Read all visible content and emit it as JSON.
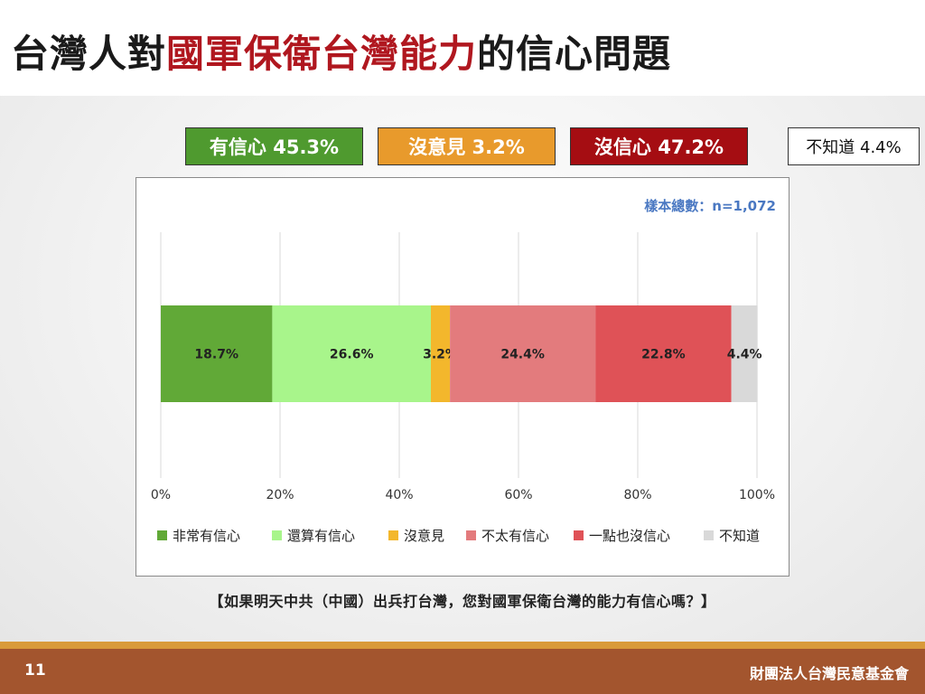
{
  "title": {
    "prefix": "台灣人對",
    "highlight": "國軍保衛台灣能力",
    "suffix": "的信心問題"
  },
  "summary": {
    "confident": "有信心 45.3%",
    "no_opinion": "沒意見 3.2%",
    "not_confident": "沒信心 47.2%",
    "unknown": "不知道 4.4%"
  },
  "question": "【如果明天中共（中國）出兵打台灣，您對國軍保衛台灣的能力有信心嗎？】",
  "footer": {
    "page_number": "11",
    "organization": "財團法人台灣民意基金會"
  },
  "chart_data": {
    "type": "bar",
    "orientation": "horizontal-stacked",
    "sample_note": "樣本總數：n=1,072",
    "xlim": [
      0,
      100
    ],
    "x_ticks": [
      "0%",
      "20%",
      "40%",
      "60%",
      "80%",
      "100%"
    ],
    "grid": true,
    "legend_position": "bottom",
    "series": [
      {
        "name": "非常有信心",
        "value": 18.7,
        "label": "18.7%",
        "color": "#61a937"
      },
      {
        "name": "還算有信心",
        "value": 26.6,
        "label": "26.6%",
        "color": "#a8f58b"
      },
      {
        "name": "沒意見",
        "value": 3.2,
        "label": "3.2%",
        "color": "#f3b72c"
      },
      {
        "name": "不太有信心",
        "value": 24.4,
        "label": "24.4%",
        "color": "#e37b7d"
      },
      {
        "name": "一點也沒信心",
        "value": 22.8,
        "label": "22.8%",
        "color": "#df5257"
      },
      {
        "name": "不知道",
        "value": 4.4,
        "label": "4.4%",
        "color": "#d9d9d9"
      }
    ]
  }
}
